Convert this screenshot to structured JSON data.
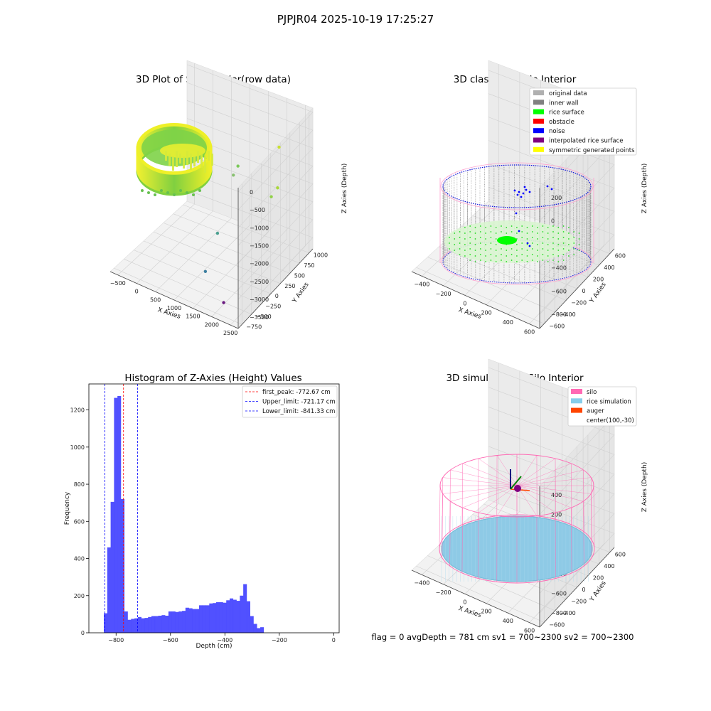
{
  "suptitle": "PJPJR04 2025-10-19 17:25:27",
  "footer": {
    "text": "flag = 0     avgDepth = 781 cm  sv1 = 700~2300  sv2 = 700~2300"
  },
  "chart_data": [
    {
      "type": "scatter3d",
      "title": "3D Plot of Silo Interior(row data)",
      "xlabel": "X Axies",
      "ylabel": "Y Axies",
      "zlabel": "Z Axies (Depth)",
      "x_ticks": [
        "−500",
        "0",
        "500",
        "1000",
        "1500",
        "2000",
        "2500"
      ],
      "y_ticks": [
        "−750",
        "−500",
        "−250",
        "0",
        "250",
        "500",
        "750",
        "1000"
      ],
      "z_ticks": [
        "−3500",
        "−3000",
        "−2500",
        "−2000",
        "−1500",
        "−1000",
        "−500",
        "0"
      ],
      "xlim": [
        -600,
        2800
      ],
      "ylim": [
        -800,
        1050
      ],
      "zlim": [
        -3800,
        100
      ],
      "colormap": "viridis",
      "description_note": "",
      "outliers": [
        {
          "x": 2600,
          "y": 400,
          "z": -300,
          "color": "#c8e030"
        },
        {
          "x": 2400,
          "y": 550,
          "z": -1700,
          "color": "#a8d838"
        },
        {
          "x": 2500,
          "y": 300,
          "z": -1600,
          "color": "#90d048"
        },
        {
          "x": 1400,
          "y": 500,
          "z": -1500,
          "color": "#7ac858"
        },
        {
          "x": 1600,
          "y": 200,
          "z": -1300,
          "color": "#88c070"
        },
        {
          "x": 1500,
          "y": -100,
          "z": -2600,
          "color": "#4aa090"
        },
        {
          "x": 1500,
          "y": -400,
          "z": -3300,
          "color": "#3c7fa0"
        },
        {
          "x": 2200,
          "y": -600,
          "z": -3600,
          "color": "#6a1a80"
        }
      ]
    },
    {
      "type": "scatter3d",
      "title": "3D classify of Silo Interior",
      "xlabel": "X Axies",
      "ylabel": "Y Axies",
      "zlabel": "Z Axies (Depth)",
      "x_ticks": [
        "−400",
        "−200",
        "0",
        "200",
        "400",
        "600"
      ],
      "y_ticks": [
        "−600",
        "−400",
        "−200",
        "0",
        "200",
        "400",
        "600"
      ],
      "z_ticks": [
        "−800",
        "−600",
        "−400",
        "−200",
        "0",
        "200"
      ],
      "xlim": [
        -500,
        700
      ],
      "ylim": [
        -650,
        650
      ],
      "zlim": [
        -950,
        250
      ],
      "legend": [
        {
          "label": "original data",
          "color": "#b0b0b0"
        },
        {
          "label": "inner wall",
          "color": "#808080"
        },
        {
          "label": "rice surface",
          "color": "#00ff00"
        },
        {
          "label": "obstacle",
          "color": "#ff0000"
        },
        {
          "label": "noise",
          "color": "#0000ff"
        },
        {
          "label": "interpolated rice surface",
          "color": "#800080"
        },
        {
          "label": "symmetric generated points",
          "color": "#ffff00"
        }
      ],
      "legend_loc": "top-right"
    },
    {
      "type": "bar",
      "title": "Histogram of Z-Axies (Height) Values",
      "xlabel": "Depth (cm)",
      "ylabel": "Frequency",
      "xlim": [
        -900,
        20
      ],
      "ylim": [
        0,
        1340
      ],
      "x_ticks": [
        -800,
        -600,
        -400,
        -200,
        0
      ],
      "x_tick_labels": [
        "−800",
        "−600",
        "−400",
        "−200",
        "0"
      ],
      "y_ticks": [
        0,
        200,
        400,
        600,
        800,
        1000,
        1200
      ],
      "y_tick_labels": [
        "0",
        "200",
        "400",
        "600",
        "800",
        "1000",
        "1200"
      ],
      "bar_color": "#4848ff",
      "bin_start": -845,
      "bin_width": 12.5,
      "values": [
        105,
        460,
        705,
        1265,
        1275,
        720,
        115,
        70,
        75,
        78,
        85,
        78,
        80,
        85,
        90,
        90,
        92,
        95,
        92,
        115,
        115,
        112,
        115,
        118,
        135,
        132,
        128,
        128,
        148,
        148,
        148,
        158,
        160,
        165,
        165,
        162,
        175,
        185,
        178,
        172,
        200,
        262,
        170,
        90,
        48,
        25,
        30
      ],
      "lines": [
        {
          "label": "first_peak: -772.67 cm",
          "x": -772.67,
          "color": "#ff0000"
        },
        {
          "label": "Upper_limit: -721.17 cm",
          "x": -721.17,
          "color": "#0000ff"
        },
        {
          "label": "Lower_limit: -841.33 cm",
          "x": -841.33,
          "color": "#0000ff"
        }
      ],
      "legend_loc": "top-right"
    },
    {
      "type": "scatter3d",
      "title": "3D simulation of Silo Interior",
      "xlabel": "X Axies",
      "ylabel": "Y Axies",
      "zlabel": "Z Axies (Depth)",
      "x_ticks": [
        "−400",
        "−200",
        "0",
        "200",
        "400",
        "600"
      ],
      "y_ticks": [
        "−600",
        "−400",
        "−200",
        "0",
        "200",
        "400",
        "600"
      ],
      "z_ticks": [
        "−800",
        "−600",
        "−400",
        "−200",
        "0",
        "200",
        "400"
      ],
      "xlim": [
        -500,
        700
      ],
      "ylim": [
        -650,
        650
      ],
      "zlim": [
        -950,
        450
      ],
      "legend": [
        {
          "label": "silo",
          "color": "#ff69b4"
        },
        {
          "label": "rice simulation",
          "color": "#87ceeb"
        },
        {
          "label": "auger",
          "color": "#ff4500"
        },
        {
          "label": "center(100,-30)",
          "color": ""
        }
      ],
      "legend_loc": "top-right"
    }
  ]
}
